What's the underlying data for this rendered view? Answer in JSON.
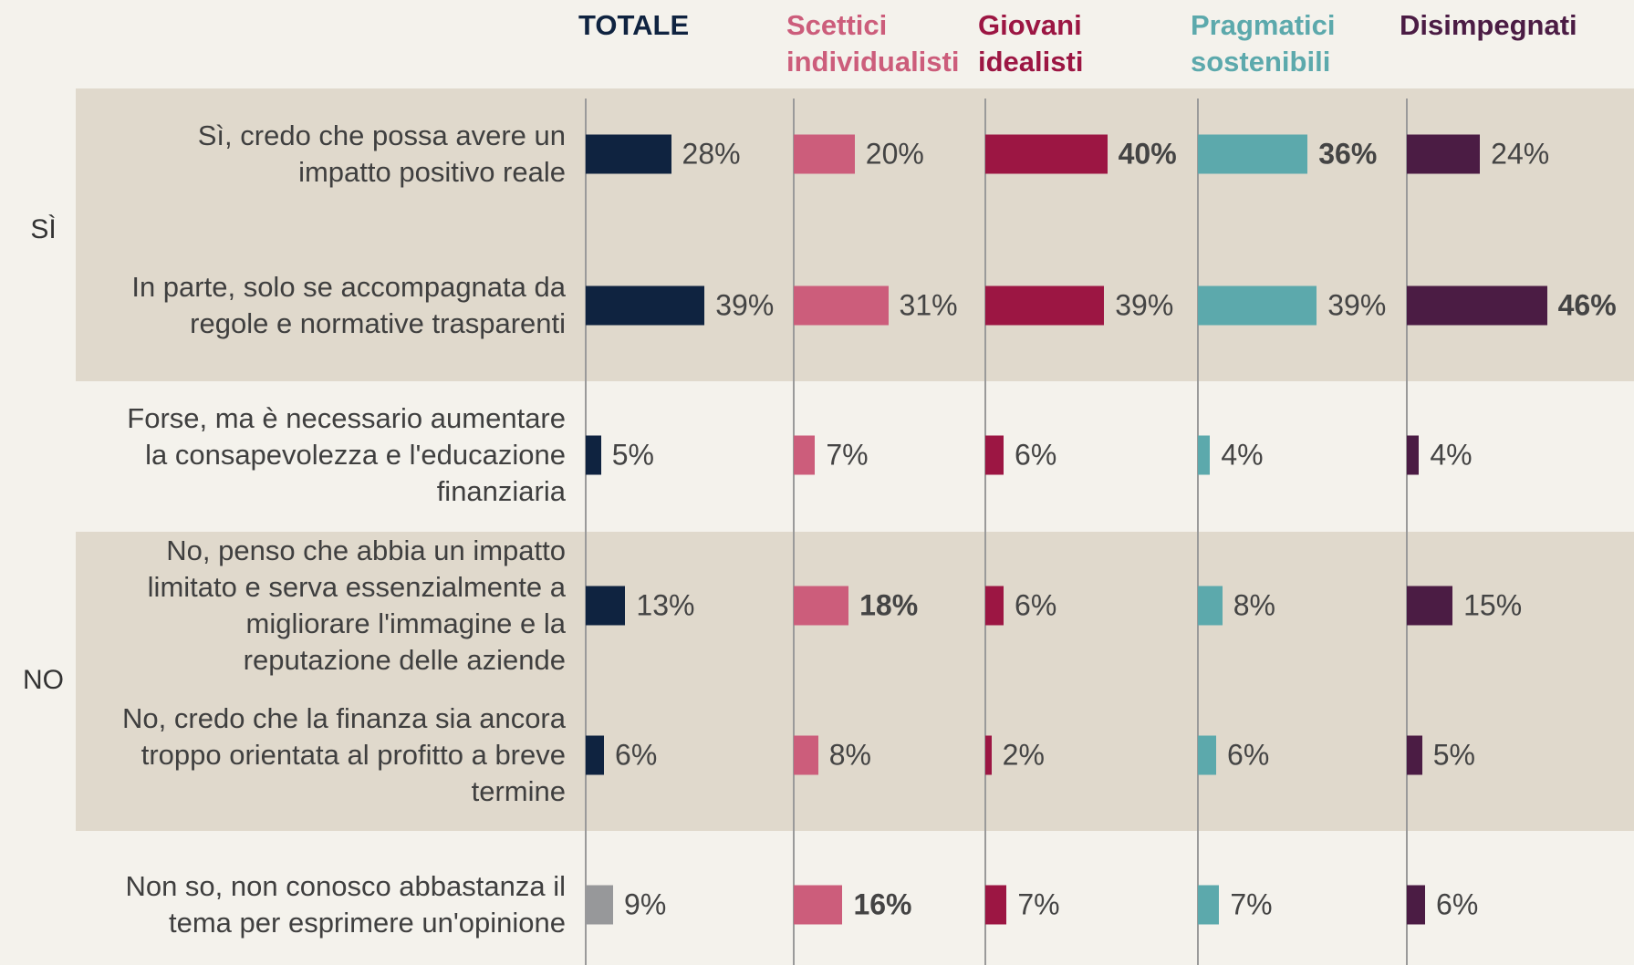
{
  "chart_data": {
    "type": "bar",
    "categories": [
      "Sì, credo che possa avere un impatto positivo reale",
      "In parte, solo se accompagnata da regole e normative trasparenti",
      "Forse, ma è necessario aumentare la consapevolezza e l'educazione finanziaria",
      "No, penso che abbia un impatto limitato e serva essenzialmente a migliorare l'immagine e la reputazione delle aziende",
      "No, credo che la finanza sia ancora troppo orientata al profitto a breve termine",
      "Non so, non conosco abbastanza il tema per esprimere un'opinione"
    ],
    "groups": [
      {
        "label": "SÌ",
        "rows": [
          0,
          1
        ]
      },
      {
        "label": "NO",
        "rows": [
          3,
          4
        ]
      }
    ],
    "series": [
      {
        "name": "TOTALE",
        "color": "#0f2340",
        "point_colors": [
          "#0f2340",
          "#0f2340",
          "#0f2340",
          "#0f2340",
          "#0f2340",
          "#97989a"
        ],
        "values": [
          28,
          39,
          5,
          13,
          6,
          9
        ],
        "value_labels": [
          "28%",
          "39%",
          "5%",
          "13%",
          "6%",
          "9%"
        ],
        "bold": []
      },
      {
        "name": "Scettici individualisti",
        "color": "#cc5d7b",
        "values": [
          20,
          31,
          7,
          18,
          8,
          16
        ],
        "value_labels": [
          "20%",
          "31%",
          "7%",
          "18%",
          "8%",
          "16%"
        ],
        "bold": [
          3,
          5
        ]
      },
      {
        "name": "Giovani idealisti",
        "color": "#9c1643",
        "values": [
          40,
          39,
          6,
          6,
          2,
          7
        ],
        "value_labels": [
          "40%",
          "39%",
          "6%",
          "6%",
          "2%",
          "7%"
        ],
        "bold": [
          0
        ]
      },
      {
        "name": "Pragmatici sostenibili",
        "color": "#5ca9ac",
        "values": [
          36,
          39,
          4,
          8,
          6,
          7
        ],
        "value_labels": [
          "36%",
          "39%",
          "4%",
          "8%",
          "6%",
          "7%"
        ],
        "bold": [
          0
        ]
      },
      {
        "name": "Disimpegnati",
        "color": "#4b1c44",
        "values": [
          24,
          46,
          4,
          15,
          5,
          6
        ],
        "value_labels": [
          "24%",
          "46%",
          "4%",
          "15%",
          "5%",
          "6%"
        ],
        "bold": [
          1
        ]
      }
    ]
  }
}
